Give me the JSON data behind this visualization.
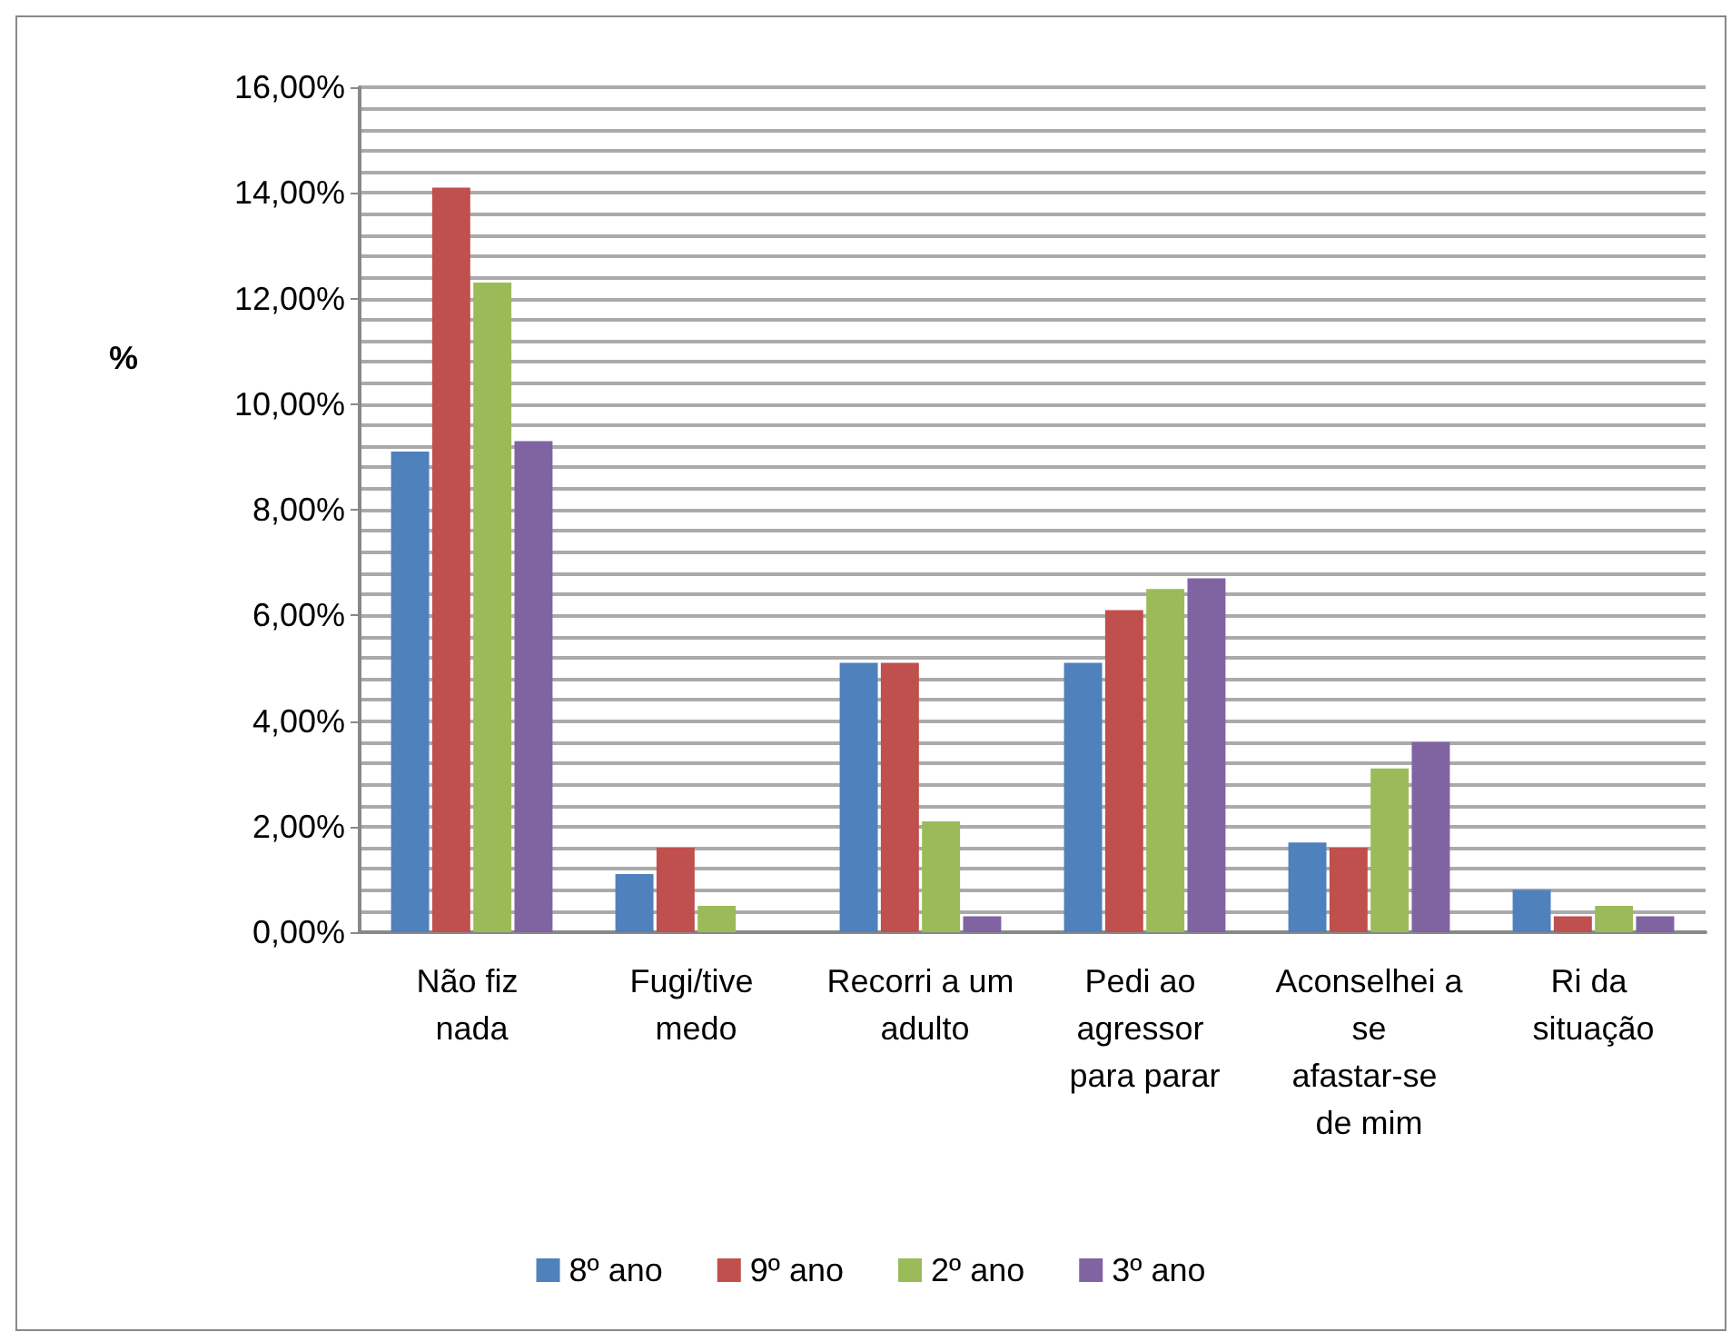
{
  "chart_data": {
    "type": "bar",
    "ylabel": "%",
    "categories": [
      "Não fiz nada",
      "Fugi/tive medo",
      "Recorri a um adulto",
      "Pedi ao agressor para parar",
      "Aconselhei a se afastar-se de mim",
      "Ri da situação"
    ],
    "series": [
      {
        "name": "8º ano",
        "color": "#4f81bd",
        "values": [
          9.1,
          1.1,
          5.1,
          5.1,
          1.7,
          0.8
        ]
      },
      {
        "name": "9º ano",
        "color": "#c0504d",
        "values": [
          14.1,
          1.6,
          5.1,
          6.1,
          1.6,
          0.3
        ]
      },
      {
        "name": "2º ano",
        "color": "#9bbb59",
        "values": [
          12.3,
          0.5,
          2.1,
          6.5,
          3.1,
          0.5
        ]
      },
      {
        "name": "3º ano",
        "color": "#8064a2",
        "values": [
          9.3,
          0,
          0.3,
          6.7,
          3.6,
          0.3
        ]
      }
    ],
    "ylim": [
      0,
      16
    ],
    "yticks": [
      {
        "value": 0,
        "label": "0,00%"
      },
      {
        "value": 2,
        "label": "2,00%"
      },
      {
        "value": 4,
        "label": "4,00%"
      },
      {
        "value": 6,
        "label": "6,00%"
      },
      {
        "value": 8,
        "label": "8,00%"
      },
      {
        "value": 10,
        "label": "10,00%"
      },
      {
        "value": 12,
        "label": "12,00%"
      },
      {
        "value": 14,
        "label": "14,00%"
      },
      {
        "value": 16,
        "label": "16,00%"
      }
    ],
    "grid": true,
    "legend": "bottom"
  }
}
